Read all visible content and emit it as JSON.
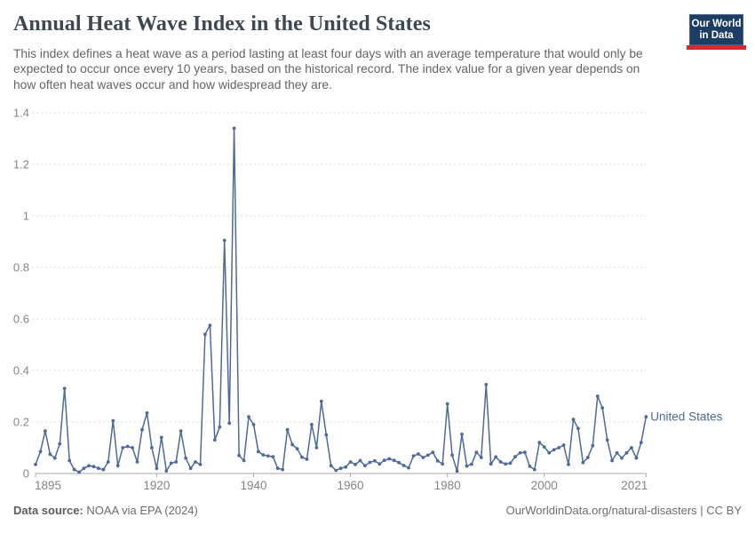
{
  "header": {
    "title": "Annual Heat Wave Index in the United States",
    "subtitle": "This index defines a heat wave as a period lasting at least four days with an average temperature that would only be expected to occur once every 10 years, based on the historical record. The index value for a given year depends on how often heat waves occur and how widespread they are.",
    "logo": {
      "line1": "Our World",
      "line2": "in Data"
    }
  },
  "footer": {
    "datasource_label": "Data source:",
    "datasource_value": " NOAA via EPA (2024)",
    "right_text": "OurWorldinData.org/natural-disasters | CC BY"
  },
  "chart_data": {
    "type": "line",
    "title": "Annual Heat Wave Index in the United States",
    "legend_label": "United States",
    "xlabel": "",
    "ylabel": "",
    "xlim": [
      1895,
      2021
    ],
    "ylim": [
      0,
      1.4
    ],
    "x_ticks": [
      1895,
      1920,
      1940,
      1960,
      1980,
      2000,
      2021
    ],
    "y_ticks": [
      0,
      0.2,
      0.4,
      0.6,
      0.8,
      1,
      1.2,
      1.4
    ],
    "y_tick_labels": [
      "0",
      "0.2",
      "0.4",
      "0.6",
      "0.8",
      "1",
      "1.2",
      "1.4"
    ],
    "grid": "horizontal-dashed",
    "legend_position": "right-of-last-point",
    "colors": {
      "line": "#4C6A9C",
      "grid": "#dedede",
      "axis": "#a8a8a8",
      "tick_text": "#858585",
      "legend_text": "#4C6A9C"
    },
    "years": {
      "start": 1895,
      "end": 2021,
      "step": 1
    },
    "values": [
      0.035,
      0.085,
      0.165,
      0.075,
      0.06,
      0.115,
      0.33,
      0.05,
      0.015,
      0.005,
      0.02,
      0.03,
      0.027,
      0.02,
      0.015,
      0.045,
      0.205,
      0.03,
      0.1,
      0.105,
      0.1,
      0.045,
      0.17,
      0.235,
      0.1,
      0.02,
      0.14,
      0.01,
      0.04,
      0.045,
      0.165,
      0.06,
      0.02,
      0.045,
      0.035,
      0.54,
      0.575,
      0.13,
      0.18,
      0.905,
      0.195,
      1.34,
      0.07,
      0.05,
      0.22,
      0.19,
      0.085,
      0.072,
      0.068,
      0.065,
      0.02,
      0.015,
      0.17,
      0.112,
      0.096,
      0.063,
      0.055,
      0.19,
      0.1,
      0.28,
      0.15,
      0.03,
      0.012,
      0.02,
      0.025,
      0.045,
      0.035,
      0.05,
      0.03,
      0.043,
      0.049,
      0.037,
      0.051,
      0.057,
      0.051,
      0.042,
      0.031,
      0.022,
      0.068,
      0.076,
      0.062,
      0.071,
      0.082,
      0.049,
      0.037,
      0.27,
      0.071,
      0.009,
      0.152,
      0.029,
      0.036,
      0.082,
      0.062,
      0.345,
      0.037,
      0.064,
      0.045,
      0.037,
      0.04,
      0.065,
      0.08,
      0.082,
      0.028,
      0.015,
      0.12,
      0.103,
      0.08,
      0.092,
      0.1,
      0.11,
      0.035,
      0.21,
      0.175,
      0.042,
      0.062,
      0.108,
      0.3,
      0.255,
      0.13,
      0.05,
      0.08,
      0.06,
      0.08,
      0.1,
      0.06,
      0.12,
      0.22
    ]
  }
}
